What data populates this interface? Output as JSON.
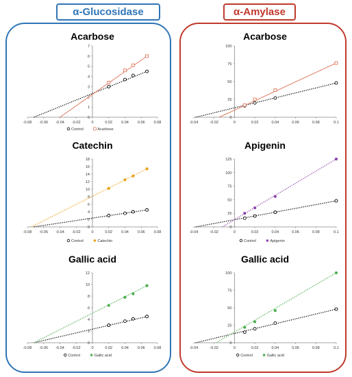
{
  "headers": {
    "left": "α-Glucosidase",
    "right": "α-Amylase"
  },
  "chart_data": [
    {
      "type": "line",
      "title": "Acarbose",
      "xlim": [
        -0.08,
        0.08
      ],
      "ylim": [
        0,
        7
      ],
      "xticks": [
        "-0.08",
        "-0.06",
        "-0.04",
        "-0.02",
        "0",
        "0.02",
        "0.04",
        "0.06",
        "0.08"
      ],
      "xtick_values": [
        -0.08,
        -0.06,
        -0.04,
        -0.02,
        0,
        0.02,
        0.04,
        0.06,
        0.08
      ],
      "yticks": [
        "0",
        "1",
        "2",
        "3",
        "4",
        "5",
        "6",
        "7"
      ],
      "ytick_values": [
        0,
        1,
        2,
        3,
        4,
        5,
        6,
        7
      ],
      "series": [
        {
          "name": "Control",
          "color": "#000000",
          "marker": "circle",
          "fit": "dot",
          "x": [
            0.02,
            0.04,
            0.05,
            0.067
          ],
          "y": [
            3.0,
            3.7,
            4.1,
            4.5
          ],
          "line": [
            [
              -0.072,
              0
            ],
            [
              0.067,
              4.5
            ]
          ]
        },
        {
          "name": "Acarbose",
          "color": "#e07a5f",
          "marker": "square",
          "fit": "solid",
          "x": [
            0.02,
            0.04,
            0.05,
            0.067
          ],
          "y": [
            3.4,
            4.6,
            5.1,
            6.0
          ],
          "line": [
            [
              -0.04,
              0
            ],
            [
              0.067,
              6.0
            ]
          ]
        }
      ]
    },
    {
      "type": "line",
      "title": "Acarbose",
      "xlim": [
        -0.04,
        0.1
      ],
      "ylim": [
        0,
        100
      ],
      "xticks": [
        "-0.04",
        "-0.02",
        "0",
        "0.02",
        "0.04",
        "0.06",
        "0.08",
        "0.1"
      ],
      "xtick_values": [
        -0.04,
        -0.02,
        0,
        0.02,
        0.04,
        0.06,
        0.08,
        0.1
      ],
      "yticks": [
        "0",
        "25",
        "50",
        "75",
        "100"
      ],
      "ytick_values": [
        0,
        25,
        50,
        75,
        100
      ],
      "series": [
        {
          "name": "",
          "color": "#000000",
          "marker": "circle",
          "fit": "dot",
          "x": [
            0.01,
            0.02,
            0.04,
            0.1
          ],
          "y": [
            16,
            20,
            27,
            48
          ],
          "line": [
            [
              -0.038,
              0
            ],
            [
              0.1,
              48
            ]
          ]
        },
        {
          "name": "",
          "color": "#e07a5f",
          "marker": "square",
          "fit": "solid",
          "x": [
            0.01,
            0.02,
            0.04,
            0.1
          ],
          "y": [
            17,
            25,
            38,
            76
          ],
          "line": [
            [
              -0.015,
              0
            ],
            [
              0.1,
              76
            ]
          ]
        }
      ]
    },
    {
      "type": "line",
      "title": "Catechin",
      "xlim": [
        -0.08,
        0.08
      ],
      "ylim": [
        0,
        18
      ],
      "xticks": [
        "-0.08",
        "-0.06",
        "-0.04",
        "-0.02",
        "0",
        "0.02",
        "0.04",
        "0.06",
        "0.08"
      ],
      "xtick_values": [
        -0.08,
        -0.06,
        -0.04,
        -0.02,
        0,
        0.02,
        0.04,
        0.06,
        0.08
      ],
      "yticks": [
        "0",
        "2",
        "4",
        "6",
        "8",
        "10",
        "12",
        "14",
        "16",
        "18"
      ],
      "ytick_values": [
        0,
        2,
        4,
        6,
        8,
        10,
        12,
        14,
        16,
        18
      ],
      "series": [
        {
          "name": "Control",
          "color": "#000000",
          "marker": "circle",
          "fit": "dot",
          "x": [
            0.02,
            0.04,
            0.05,
            0.067
          ],
          "y": [
            3.0,
            3.6,
            4.0,
            4.5
          ],
          "line": [
            [
              -0.072,
              0
            ],
            [
              0.067,
              4.5
            ]
          ]
        },
        {
          "name": "Catechin",
          "color": "#e8a317",
          "marker": "diamond",
          "fit": "dot",
          "x": [
            0.02,
            0.04,
            0.05,
            0.067
          ],
          "y": [
            10.2,
            12.5,
            13.5,
            15.4
          ],
          "line": [
            [
              -0.075,
              0
            ],
            [
              0.067,
              15.4
            ]
          ]
        }
      ]
    },
    {
      "type": "line",
      "title": "Apigenin",
      "xlim": [
        -0.04,
        0.1
      ],
      "ylim": [
        0,
        125
      ],
      "xticks": [
        "-0.04",
        "-0.02",
        "0",
        "0.02",
        "0.04",
        "0.06",
        "0.08",
        "0.1"
      ],
      "xtick_values": [
        -0.04,
        -0.02,
        0,
        0.02,
        0.04,
        0.06,
        0.08,
        0.1
      ],
      "yticks": [
        "0",
        "25",
        "50",
        "75",
        "100",
        "125"
      ],
      "ytick_values": [
        0,
        25,
        50,
        75,
        100,
        125
      ],
      "series": [
        {
          "name": "Control",
          "color": "#000000",
          "marker": "circle",
          "fit": "dot",
          "x": [
            0.01,
            0.02,
            0.04,
            0.1
          ],
          "y": [
            16,
            20,
            27,
            48
          ],
          "line": [
            [
              -0.038,
              0
            ],
            [
              0.1,
              48
            ]
          ]
        },
        {
          "name": "Apigenin",
          "color": "#8e44ad",
          "marker": "diamond",
          "fit": "dot",
          "x": [
            0.01,
            0.02,
            0.04,
            0.1
          ],
          "y": [
            25,
            35,
            56,
            125
          ],
          "line": [
            [
              -0.012,
              0
            ],
            [
              0.1,
              125
            ]
          ]
        }
      ]
    },
    {
      "type": "line",
      "title": "Gallic acid",
      "xlim": [
        -0.08,
        0.08
      ],
      "ylim": [
        0,
        12
      ],
      "xticks": [
        "-0.08",
        "-0.06",
        "-0.04",
        "-0.02",
        "0",
        "0.02",
        "0.04",
        "0.06",
        "0.08"
      ],
      "xtick_values": [
        -0.08,
        -0.06,
        -0.04,
        -0.02,
        0,
        0.02,
        0.04,
        0.06,
        0.08
      ],
      "yticks": [
        "0",
        "2",
        "4",
        "6",
        "8",
        "10",
        "12"
      ],
      "ytick_values": [
        0,
        2,
        4,
        6,
        8,
        10,
        12
      ],
      "series": [
        {
          "name": "Control",
          "color": "#000000",
          "marker": "circle",
          "fit": "dot",
          "x": [
            0.02,
            0.04,
            0.05,
            0.067
          ],
          "y": [
            3.0,
            3.7,
            4.1,
            4.5
          ],
          "line": [
            [
              -0.072,
              0
            ],
            [
              0.067,
              4.5
            ]
          ]
        },
        {
          "name": "Gallic acid",
          "color": "#4caf50",
          "marker": "diamond",
          "fit": "dot",
          "x": [
            0.02,
            0.04,
            0.05,
            0.067
          ],
          "y": [
            6.4,
            7.8,
            8.4,
            9.8
          ],
          "line": [
            [
              -0.072,
              0
            ],
            [
              0.067,
              9.8
            ]
          ]
        }
      ]
    },
    {
      "type": "line",
      "title": "Gallic acid",
      "xlim": [
        -0.04,
        0.1
      ],
      "ylim": [
        0,
        100
      ],
      "xticks": [
        "-0.04",
        "-0.02",
        "0",
        "0.02",
        "0.04",
        "0.06",
        "0.08",
        "0.1"
      ],
      "xtick_values": [
        -0.04,
        -0.02,
        0,
        0.02,
        0.04,
        0.06,
        0.08,
        0.1
      ],
      "yticks": [
        "0",
        "25",
        "50",
        "75",
        "100"
      ],
      "ytick_values": [
        0,
        25,
        50,
        75,
        100
      ],
      "series": [
        {
          "name": "Control",
          "color": "#000000",
          "marker": "circle",
          "fit": "dot",
          "x": [
            0.01,
            0.02,
            0.04,
            0.1
          ],
          "y": [
            15,
            20,
            28,
            48
          ],
          "line": [
            [
              -0.038,
              0
            ],
            [
              0.1,
              48
            ]
          ]
        },
        {
          "name": "Gallic acid",
          "color": "#4caf50",
          "marker": "diamond",
          "fit": "dot",
          "x": [
            0.01,
            0.02,
            0.04,
            0.1
          ],
          "y": [
            22,
            30,
            46,
            100
          ],
          "line": [
            [
              -0.018,
              0
            ],
            [
              0.1,
              100
            ]
          ]
        }
      ]
    }
  ]
}
